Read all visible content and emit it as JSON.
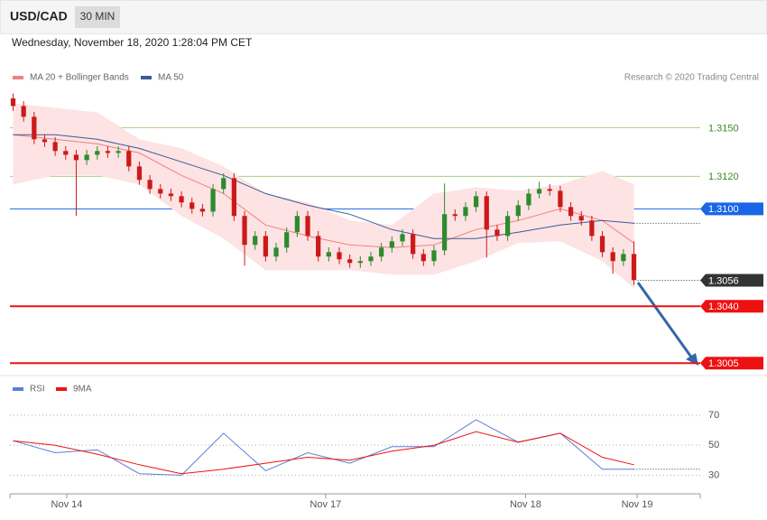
{
  "header": {
    "symbol": "USD/CAD",
    "interval": "30 MIN",
    "timestamp": "Wednesday, November 18, 2020 1:28:04 PM CET"
  },
  "chart_data": [
    {
      "type": "candlestick",
      "credit": "Research © 2020 Trading Central",
      "x": [
        0,
        1,
        2,
        3,
        4,
        5,
        6,
        7,
        8,
        9,
        10,
        11,
        12,
        13,
        14,
        15,
        16,
        17,
        18,
        19,
        20,
        21,
        22,
        23,
        24,
        25,
        26,
        27,
        28,
        29,
        30,
        31,
        32,
        33,
        34,
        35,
        36,
        37,
        38,
        39,
        40,
        41,
        42,
        43,
        44,
        45,
        46,
        47,
        48,
        49,
        50,
        51,
        52,
        53,
        54,
        55,
        56,
        57,
        58,
        59
      ],
      "open": [
        1.3168,
        1.31633,
        1.31567,
        1.31428,
        1.31411,
        1.31356,
        1.31333,
        1.313,
        1.31333,
        1.31356,
        1.31344,
        1.31356,
        1.31261,
        1.31178,
        1.31122,
        1.31094,
        1.31078,
        1.31039,
        1.31,
        1.30983,
        1.31122,
        1.31189,
        1.30956,
        1.30778,
        1.30833,
        1.30706,
        1.30761,
        1.30856,
        1.30956,
        1.30833,
        1.30706,
        1.30733,
        1.30689,
        1.30667,
        1.30678,
        1.30706,
        1.30761,
        1.308,
        1.30844,
        1.30722,
        1.30678,
        1.30744,
        1.30967,
        1.30956,
        1.31011,
        1.31078,
        1.30872,
        1.30833,
        1.30956,
        1.31022,
        1.31094,
        1.31122,
        1.31111,
        1.31011,
        1.30956,
        1.30928,
        1.30833,
        1.30733,
        1.30678,
        1.30722
      ],
      "high": [
        1.3171,
        1.31663,
        1.31597,
        1.31458,
        1.31441,
        1.31386,
        1.31363,
        1.31363,
        1.31386,
        1.31386,
        1.31386,
        1.31386,
        1.31291,
        1.31208,
        1.31152,
        1.31124,
        1.31108,
        1.31069,
        1.3103,
        1.31152,
        1.31219,
        1.31219,
        1.30986,
        1.30863,
        1.30863,
        1.30791,
        1.30886,
        1.30986,
        1.30986,
        1.30863,
        1.30763,
        1.30763,
        1.30719,
        1.30708,
        1.30736,
        1.30791,
        1.3083,
        1.30874,
        1.30874,
        1.30752,
        1.30774,
        1.31156,
        1.30997,
        1.31041,
        1.31108,
        1.31108,
        1.30902,
        1.30986,
        1.31052,
        1.31124,
        1.31167,
        1.31152,
        1.31141,
        1.31041,
        1.30986,
        1.30958,
        1.30863,
        1.30763,
        1.30752,
        1.308
      ],
      "low": [
        1.31603,
        1.31537,
        1.31398,
        1.31381,
        1.31326,
        1.31303,
        1.30956,
        1.3127,
        1.31303,
        1.31314,
        1.31314,
        1.31231,
        1.31148,
        1.31092,
        1.31064,
        1.31048,
        1.31009,
        1.3097,
        1.30953,
        1.30953,
        1.31092,
        1.30926,
        1.3065,
        1.30748,
        1.30676,
        1.30676,
        1.30731,
        1.30826,
        1.30803,
        1.30676,
        1.30676,
        1.30659,
        1.30637,
        1.30637,
        1.30648,
        1.30676,
        1.30731,
        1.3077,
        1.30692,
        1.30648,
        1.30648,
        1.30714,
        1.30926,
        1.30926,
        1.30981,
        1.307,
        1.30803,
        1.30803,
        1.30926,
        1.30992,
        1.31064,
        1.31081,
        1.30981,
        1.30926,
        1.30898,
        1.30803,
        1.30703,
        1.306,
        1.30648,
        1.30531
      ],
      "close": [
        1.31633,
        1.31567,
        1.31428,
        1.31411,
        1.31356,
        1.31333,
        1.313,
        1.31333,
        1.31356,
        1.31344,
        1.31356,
        1.31261,
        1.31178,
        1.31122,
        1.31094,
        1.31078,
        1.31039,
        1.31,
        1.30983,
        1.31122,
        1.31189,
        1.30956,
        1.30778,
        1.30833,
        1.30706,
        1.30761,
        1.30856,
        1.30956,
        1.30833,
        1.30706,
        1.30733,
        1.30689,
        1.30667,
        1.30678,
        1.30706,
        1.30761,
        1.308,
        1.30844,
        1.30722,
        1.30678,
        1.30744,
        1.30967,
        1.30956,
        1.31011,
        1.31078,
        1.30872,
        1.30833,
        1.30956,
        1.31022,
        1.31094,
        1.31122,
        1.31111,
        1.31011,
        1.30956,
        1.30928,
        1.30833,
        1.30733,
        1.30678,
        1.30722,
        1.30561
      ],
      "up_color": "#2e8b2e",
      "down_color": "#cc1a1a",
      "series": [
        {
          "name": "MA 20 + Bollinger Bands",
          "color": "#f08080",
          "band_color": "#fde3e3",
          "x": [
            0,
            4,
            8,
            12,
            16,
            20,
            24,
            28,
            32,
            36,
            40,
            44,
            48,
            52,
            56,
            59
          ],
          "values": [
            1.31456,
            1.31428,
            1.314,
            1.31344,
            1.31206,
            1.31094,
            1.309,
            1.30833,
            1.30778,
            1.30761,
            1.30778,
            1.30872,
            1.30928,
            1.31,
            1.30928,
            1.30789
          ],
          "upper": [
            1.3165,
            1.31622,
            1.31594,
            1.31428,
            1.31372,
            1.31261,
            1.31094,
            1.31039,
            1.30928,
            1.309,
            1.31094,
            1.31133,
            1.31111,
            1.3115,
            1.31233,
            1.3115
          ],
          "lower": [
            1.3115,
            1.31206,
            1.31206,
            1.3115,
            1.30956,
            1.30817,
            1.30622,
            1.30622,
            1.30622,
            1.30594,
            1.30594,
            1.30678,
            1.30789,
            1.308,
            1.30678,
            1.30511
          ]
        },
        {
          "name": "MA 50",
          "color": "#3a5a9a",
          "x": [
            0,
            4,
            8,
            12,
            16,
            20,
            24,
            28,
            32,
            36,
            40,
            44,
            48,
            52,
            56,
            59
          ],
          "values": [
            1.31456,
            1.31456,
            1.31428,
            1.31372,
            1.31289,
            1.31206,
            1.31094,
            1.31022,
            1.30967,
            1.30872,
            1.30817,
            1.30817,
            1.30856,
            1.309,
            1.30928,
            1.30911
          ]
        }
      ],
      "levels": [
        {
          "value": 1.315,
          "label": "1.3150",
          "color": "#a8d080",
          "tag": false
        },
        {
          "value": 1.312,
          "label": "1.3120",
          "color": "#a8d080",
          "tag": false
        },
        {
          "value": 1.31,
          "label": "1.3100",
          "color": "#1a66e6",
          "tag": true
        },
        {
          "value": 1.3056,
          "label": "1.3056",
          "color": "#333333",
          "tag": true,
          "dotted": true
        },
        {
          "value": 1.304,
          "label": "1.3040",
          "color": "#ee1111",
          "tag": true
        },
        {
          "value": 1.3005,
          "label": "1.3005",
          "color": "#ee1111",
          "tag": true
        }
      ],
      "xlim": [
        -0.3,
        65.3
      ],
      "ylim": [
        1.2999,
        1.3173
      ]
    },
    {
      "type": "line",
      "series": [
        {
          "name": "RSI",
          "color": "#5b7fd6",
          "x": [
            0,
            4,
            8,
            12,
            16,
            20,
            24,
            28,
            32,
            36,
            40,
            44,
            48,
            52,
            56,
            59
          ],
          "values": [
            53,
            45,
            47,
            31,
            30,
            58,
            33,
            45,
            38,
            49,
            49,
            67,
            52,
            58,
            34,
            34
          ]
        },
        {
          "name": "9MA",
          "color": "#ee1111",
          "x": [
            0,
            4,
            8,
            12,
            16,
            20,
            24,
            28,
            32,
            36,
            40,
            44,
            48,
            52,
            56,
            59
          ],
          "values": [
            53,
            50,
            44,
            37,
            31,
            34,
            38,
            42,
            40,
            46,
            50,
            59,
            52,
            58,
            42,
            37
          ]
        }
      ],
      "xlim": [
        -0.3,
        65.3
      ],
      "xticks": [
        {
          "value": 5.1,
          "label": "Nov 14"
        },
        {
          "value": 29.7,
          "label": "Nov 17"
        },
        {
          "value": 48.7,
          "label": "Nov 18"
        },
        {
          "value": 59.3,
          "label": "Nov 19"
        }
      ],
      "ylim": [
        20,
        79
      ],
      "yticks": [
        30,
        50,
        70
      ],
      "grid": true
    }
  ]
}
